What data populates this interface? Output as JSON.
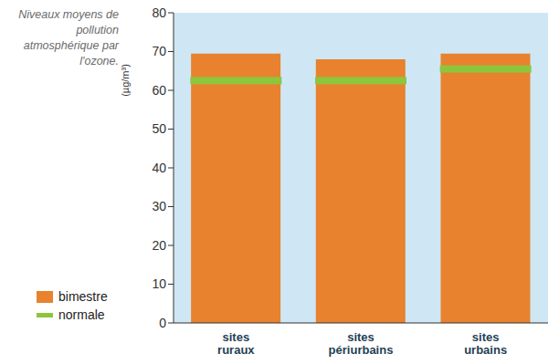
{
  "chart_data": {
    "type": "bar",
    "title": "Niveaux moyens de pollution atmosphérique par l'ozone.",
    "y_label": "(µg/m³)",
    "categories": [
      "sites ruraux",
      "sites périurbains",
      "sites urbains"
    ],
    "series": [
      {
        "name": "bimestre",
        "type": "bar",
        "color": "#e8822e",
        "values": [
          69.5,
          68,
          69.5
        ]
      },
      {
        "name": "normale",
        "type": "line",
        "marker": "dash",
        "line_style": "solid",
        "color": "#8cc63f",
        "values": [
          62.5,
          62.5,
          65.5
        ]
      }
    ],
    "ylim": [
      0,
      80
    ],
    "yticks": [
      0,
      10,
      20,
      30,
      40,
      50,
      60,
      70,
      80
    ],
    "grid": false,
    "legend": "bottom left"
  }
}
